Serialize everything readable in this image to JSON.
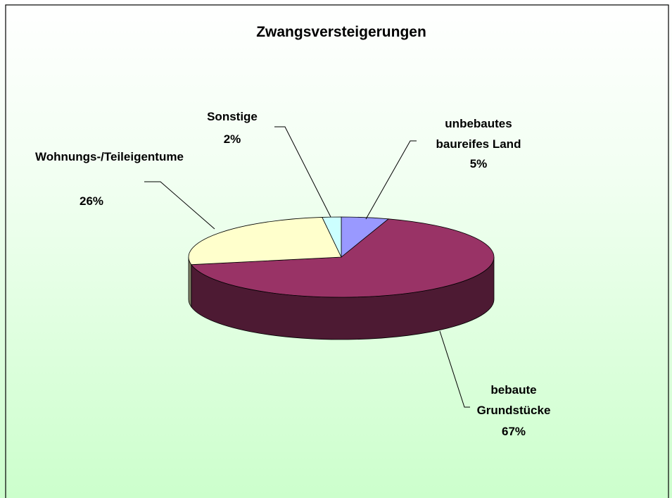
{
  "chart_data": {
    "type": "pie",
    "title": "Zwangsversteigerungen",
    "categories": [
      "unbebautes baureifes Land",
      "bebaute Grundstücke",
      "Wohnungs-/Teileigentume",
      "Sonstige"
    ],
    "values": [
      5,
      67,
      26,
      2
    ],
    "value_labels": [
      "5%",
      "67%",
      "26%",
      "2%"
    ],
    "colors": [
      "#9999ff",
      "#993366",
      "#ffffcc",
      "#ccffff"
    ]
  }
}
